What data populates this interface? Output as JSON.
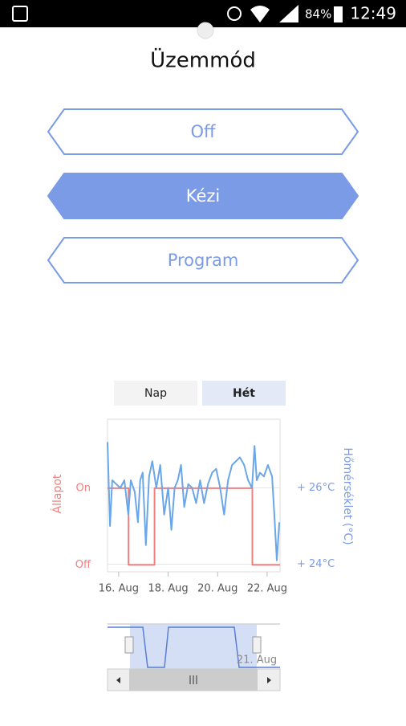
{
  "status_bar": {
    "battery": "84%",
    "time": "12:49"
  },
  "title": "Üzemmód",
  "modes": [
    {
      "label": "Off",
      "selected": false
    },
    {
      "label": "Kézi",
      "selected": true
    },
    {
      "label": "Program",
      "selected": false
    }
  ],
  "tabs": [
    {
      "label": "Nap",
      "selected": false
    },
    {
      "label": "Hét",
      "selected": true
    }
  ],
  "chart_data": {
    "type": "line",
    "ylabel": "Állapot",
    "y2label": "Hőmérséklet (°C)",
    "xlim": [
      15.55,
      22.52
    ],
    "xticks": [
      {
        "value": 16,
        "label": "16. Aug"
      },
      {
        "value": 18,
        "label": "18. Aug"
      },
      {
        "value": 20,
        "label": "20. Aug"
      },
      {
        "value": 22,
        "label": "22. Aug"
      }
    ],
    "ylim": [
      -0.09,
      1.9
    ],
    "yticks": [
      {
        "value": 1,
        "label": "On"
      },
      {
        "value": 0,
        "label": "Off"
      }
    ],
    "y2lim": [
      23.8,
      27.8
    ],
    "y2ticks": [
      {
        "value": 26,
        "label": "+ 26°C"
      },
      {
        "value": 24,
        "label": "+ 24°C"
      }
    ],
    "series": [
      {
        "color": "#f08080",
        "x": [
          15.55,
          16.4,
          16.4,
          17.45,
          17.45,
          21.4,
          21.4,
          22.52
        ],
        "values": [
          1,
          1,
          0,
          0,
          1,
          1,
          0,
          0
        ]
      },
      {
        "color": "#6aa6e8",
        "axis": "y2",
        "x": [
          15.55,
          15.65,
          15.74,
          15.9,
          16.07,
          16.23,
          16.39,
          16.49,
          16.65,
          16.78,
          16.87,
          16.97,
          17.1,
          17.23,
          17.36,
          17.52,
          17.68,
          17.84,
          18.0,
          18.13,
          18.26,
          18.39,
          18.52,
          18.65,
          18.81,
          18.97,
          19.13,
          19.29,
          19.45,
          19.61,
          19.78,
          19.94,
          20.1,
          20.26,
          20.42,
          20.58,
          20.74,
          20.9,
          21.07,
          21.23,
          21.39,
          21.49,
          21.58,
          21.71,
          21.87,
          22.03,
          22.2,
          22.29,
          22.39,
          22.49
        ],
        "values": [
          27.2,
          25.0,
          26.2,
          26.1,
          26.0,
          26.2,
          25.3,
          26.2,
          25.9,
          25.1,
          26.2,
          26.4,
          24.5,
          26.3,
          26.7,
          26.0,
          26.6,
          25.3,
          26.0,
          24.9,
          26.0,
          26.2,
          26.6,
          25.5,
          26.1,
          26.0,
          25.6,
          26.2,
          25.6,
          26.1,
          26.4,
          26.5,
          26.0,
          25.3,
          26.2,
          26.6,
          26.7,
          26.8,
          26.6,
          26.2,
          26.0,
          27.1,
          26.2,
          26.4,
          26.3,
          26.6,
          26.3,
          25.3,
          24.1,
          25.1
        ]
      }
    ]
  },
  "navigator": {
    "label": "21. Aug"
  }
}
